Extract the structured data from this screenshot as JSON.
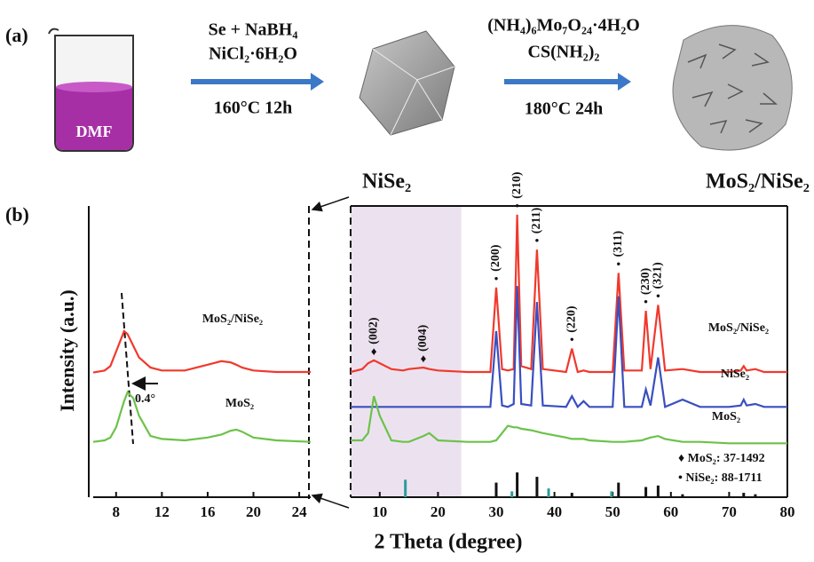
{
  "scheme": {
    "panel_a": "(a)",
    "solvent": "DMF",
    "step1_reagents": [
      "Se + NaBH₄",
      "NiCl₂·6H₂O"
    ],
    "step1_conditions": "160°C  12h",
    "step2_reagents": [
      "(NH₄)₆Mo₇O₂₄·4H₂O",
      "CS(NH₂)₂"
    ],
    "step2_conditions": "180°C  24h",
    "panel_b": "(b)",
    "product1": "NiSe₂",
    "product2": "MoS₂/NiSe₂"
  },
  "chart_data": [
    {
      "type": "line",
      "ylabel": "Intensity (a.u.)",
      "xlim": [
        6,
        25
      ],
      "xticks": [
        8,
        12,
        16,
        20,
        24
      ],
      "ylim": [
        0,
        100
      ],
      "x": [
        6,
        7,
        7.5,
        8,
        8.7,
        9,
        9.5,
        10,
        11,
        12,
        14,
        16,
        17.2,
        18,
        18.5,
        19,
        20,
        22,
        25
      ],
      "series": [
        {
          "name": "MoS₂/NiSe₂",
          "color": "#f0392d",
          "values": [
            42.8,
            43.5,
            45,
            50,
            57,
            56,
            52,
            48,
            44.5,
            43.5,
            43.5,
            45.5,
            46.7,
            46.3,
            45.5,
            44.5,
            43.5,
            43,
            43
          ]
        },
        {
          "name": "MoS₂",
          "color": "#6cc24a",
          "values": [
            19,
            19.5,
            20.5,
            24,
            33,
            36,
            34,
            28,
            21,
            20,
            19.5,
            20.5,
            21.5,
            22.8,
            23.2,
            22.5,
            20.5,
            19.5,
            19
          ]
        }
      ],
      "annotation": "0.4°"
    },
    {
      "type": "line",
      "xlabel": "2 Theta (degree)",
      "xlim": [
        5,
        80
      ],
      "xticks": [
        10,
        20,
        30,
        40,
        50,
        60,
        70,
        80
      ],
      "ylim": [
        0,
        100
      ],
      "highlight": [
        5,
        24
      ],
      "highlight_color": "#ece2ef",
      "x": [
        5,
        7,
        8,
        9,
        10,
        12,
        14,
        15,
        17.5,
        18.5,
        20,
        25,
        29,
        30,
        31,
        32,
        33,
        33.6,
        34.3,
        36,
        37,
        38,
        42,
        43,
        44,
        45,
        46,
        50,
        51,
        52,
        55,
        55.7,
        56.5,
        57.8,
        59,
        62,
        65,
        70,
        72,
        72.5,
        73,
        74.5,
        76,
        80
      ],
      "series": [
        {
          "name": "MoS₂/NiSe₂",
          "color": "#f0392d",
          "values": [
            43,
            44,
            46,
            47,
            46,
            44,
            43.5,
            44,
            44.5,
            44,
            43.5,
            43,
            43,
            72,
            44,
            43.5,
            44,
            97,
            45,
            44,
            85,
            44,
            43,
            51,
            43,
            43.5,
            43,
            43,
            77,
            43.5,
            43.5,
            64,
            44,
            66,
            43.5,
            44,
            43,
            43,
            43.5,
            45,
            43.5,
            44,
            43,
            43
          ]
        },
        {
          "name": "NiSe₂",
          "color": "#3a4fbf",
          "values": [
            31,
            31,
            31,
            31,
            31,
            31,
            31,
            31,
            31,
            31,
            31,
            31,
            31,
            57,
            31.5,
            31,
            32,
            72.5,
            32,
            31.5,
            67,
            31.5,
            31,
            34.7,
            31,
            33,
            31,
            31,
            69,
            31,
            31,
            37,
            31.5,
            48,
            31,
            33.5,
            31,
            31,
            31.5,
            33.5,
            31.5,
            32,
            31,
            31
          ]
        },
        {
          "name": "MoS₂",
          "color": "#6cc24a",
          "values": [
            19.5,
            19.5,
            22,
            34.7,
            28,
            19.5,
            19,
            19,
            21,
            22,
            19.5,
            19,
            19,
            19.5,
            22,
            24.5,
            24,
            24,
            23.5,
            23,
            22.5,
            22,
            20.5,
            20,
            20,
            20,
            19.5,
            19,
            19,
            19,
            19.5,
            20,
            20.5,
            21,
            20,
            19,
            19,
            18.5,
            18.5,
            18.5,
            18.5,
            18.5,
            18.5,
            18.5
          ]
        },
        {
          "name": "♦ MoS₂: 37-1492",
          "style": "stick",
          "color": "#2a9d9a",
          "x": [
            14.4,
            32.7,
            39,
            49.8
          ],
          "values": [
            6,
            2,
            3,
            2
          ]
        },
        {
          "name": "• NiSe₂: 88-1711",
          "style": "stick",
          "color": "#111111",
          "x": [
            30,
            33.6,
            37,
            43,
            51,
            55.7,
            57.8,
            62,
            72.5,
            74.5
          ],
          "values": [
            5,
            8.5,
            7,
            1.5,
            5,
            3.5,
            4,
            1,
            1.5,
            1
          ]
        }
      ],
      "annotations": [
        {
          "label": "(002)",
          "marker": "♦",
          "x": 9
        },
        {
          "label": "(004)",
          "marker": "♦",
          "x": 17.5
        },
        {
          "label": "(200)",
          "marker": "•",
          "x": 30
        },
        {
          "label": "(210)",
          "marker": "•",
          "x": 33.6
        },
        {
          "label": "(211)",
          "marker": "•",
          "x": 37
        },
        {
          "label": "(220)",
          "marker": "•",
          "x": 43
        },
        {
          "label": "(311)",
          "marker": "•",
          "x": 51
        },
        {
          "label": "(230)",
          "marker": "•",
          "x": 55.7
        },
        {
          "label": "(321)",
          "marker": "•",
          "x": 57.8
        }
      ]
    }
  ]
}
